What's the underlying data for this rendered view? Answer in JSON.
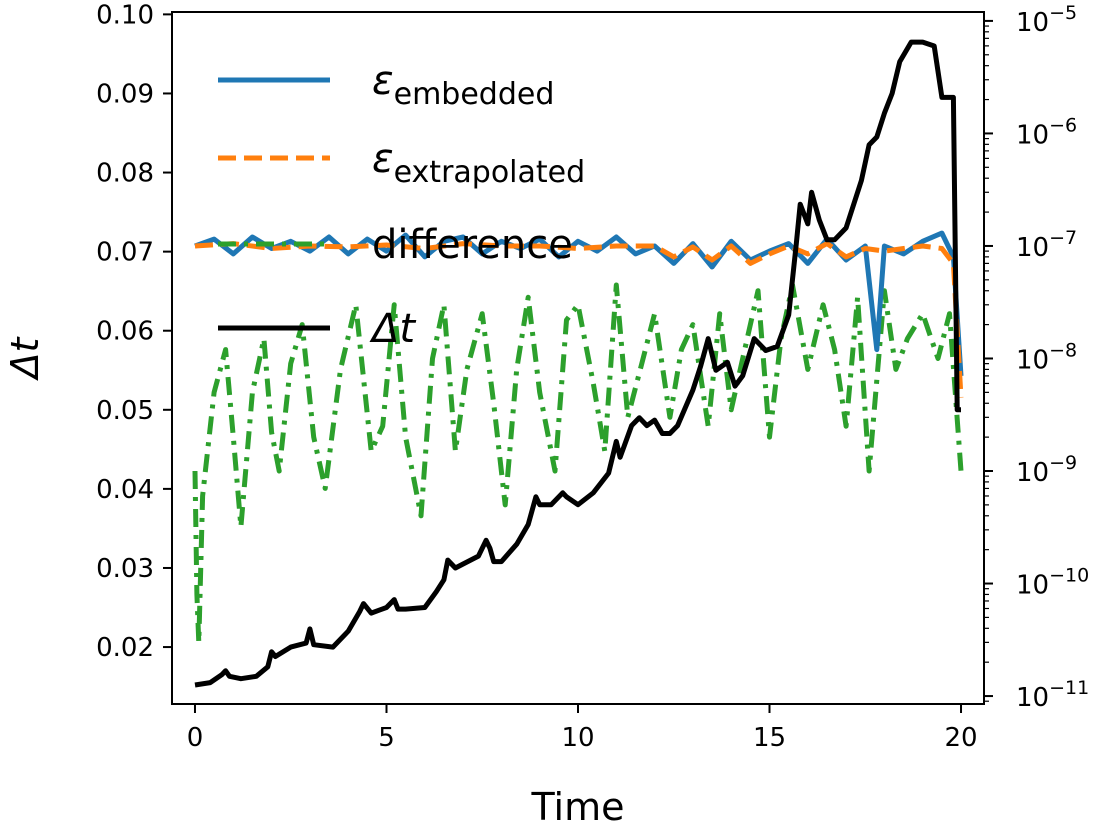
{
  "chart_data": {
    "type": "line",
    "xlabel": "Time",
    "ylabel": "Δt",
    "xlim": [
      -0.6,
      20.6
    ],
    "ylim": [
      0.0128,
      0.1003
    ],
    "y2lim": [
      8.5e-12,
      1.2e-05
    ],
    "y2scale": "log",
    "xticks": [
      0,
      5,
      10,
      15,
      20
    ],
    "xtick_labels": [
      "0",
      "5",
      "10",
      "15",
      "20"
    ],
    "yticks": [
      0.02,
      0.03,
      0.04,
      0.05,
      0.06,
      0.07,
      0.08,
      0.09,
      0.1
    ],
    "ytick_labels": [
      "0.02",
      "0.03",
      "0.04",
      "0.05",
      "0.06",
      "0.07",
      "0.08",
      "0.09",
      "0.10"
    ],
    "y2ticks": [
      1e-11,
      1e-10,
      1e-09,
      1e-08,
      1e-07,
      1e-06,
      1e-05
    ],
    "y2tick_labels": [
      {
        "base": "10",
        "exp": "−11"
      },
      {
        "base": "10",
        "exp": "−10"
      },
      {
        "base": "10",
        "exp": "−9"
      },
      {
        "base": "10",
        "exp": "−8"
      },
      {
        "base": "10",
        "exp": "−7"
      },
      {
        "base": "10",
        "exp": "−6"
      },
      {
        "base": "10",
        "exp": "−5"
      }
    ],
    "legend": {
      "placement": "upper-left",
      "entries": [
        {
          "symbol": "ε",
          "subscript": "embedded",
          "series": "embedded"
        },
        {
          "symbol": "ε",
          "subscript": "extrapolated",
          "series": "extrapolated"
        },
        {
          "symbol": "difference",
          "subscript": "",
          "series": "difference"
        },
        {
          "symbol": "Δt",
          "subscript": "",
          "series": "dt"
        }
      ]
    },
    "series": [
      {
        "key": "dt",
        "axis": "left",
        "color": "#000000",
        "dash": "solid",
        "x": [
          0,
          0.4,
          0.7,
          0.8,
          0.9,
          1.2,
          1.6,
          1.9,
          2.0,
          2.1,
          2.5,
          2.9,
          3.0,
          3.1,
          3.6,
          4.0,
          4.3,
          4.4,
          4.6,
          5.0,
          5.2,
          5.3,
          5.5,
          6.0,
          6.3,
          6.5,
          6.6,
          6.8,
          7.0,
          7.4,
          7.6,
          7.7,
          7.8,
          8.0,
          8.4,
          8.7,
          8.9,
          9.0,
          9.3,
          9.6,
          9.7,
          10.0,
          10.4,
          10.8,
          11.0,
          11.1,
          11.4,
          11.6,
          11.8,
          12.0,
          12.2,
          12.4,
          12.6,
          13.0,
          13.2,
          13.4,
          13.6,
          13.9,
          14.1,
          14.3,
          14.6,
          14.9,
          15.2,
          15.5,
          15.7,
          15.8,
          16.0,
          16.1,
          16.3,
          16.5,
          16.7,
          17.0,
          17.4,
          17.6,
          17.8,
          18.0,
          18.2,
          18.4,
          18.7,
          19.0,
          19.3,
          19.5,
          19.7,
          19.8,
          19.9,
          20.0
        ],
        "values": [
          0.0152,
          0.0155,
          0.0165,
          0.017,
          0.0163,
          0.016,
          0.0163,
          0.0175,
          0.0194,
          0.0188,
          0.02,
          0.0205,
          0.0223,
          0.0203,
          0.02,
          0.022,
          0.0245,
          0.0255,
          0.0243,
          0.025,
          0.026,
          0.0248,
          0.0248,
          0.025,
          0.027,
          0.0285,
          0.031,
          0.03,
          0.0305,
          0.0315,
          0.0335,
          0.0325,
          0.0308,
          0.0308,
          0.033,
          0.0355,
          0.039,
          0.038,
          0.038,
          0.0395,
          0.039,
          0.038,
          0.0395,
          0.042,
          0.046,
          0.044,
          0.048,
          0.049,
          0.048,
          0.0487,
          0.047,
          0.047,
          0.048,
          0.0525,
          0.0555,
          0.059,
          0.055,
          0.056,
          0.053,
          0.0543,
          0.059,
          0.0575,
          0.058,
          0.062,
          0.071,
          0.076,
          0.0735,
          0.0775,
          0.074,
          0.0715,
          0.0715,
          0.073,
          0.079,
          0.0835,
          0.0845,
          0.0875,
          0.09,
          0.094,
          0.0965,
          0.0965,
          0.096,
          0.0895,
          0.0895,
          0.0895,
          0.05,
          0.05
        ]
      },
      {
        "key": "embedded",
        "axis": "right",
        "color": "#1f77b4",
        "dash": "solid",
        "x": [
          0,
          0.5,
          1.0,
          1.5,
          2.0,
          2.5,
          3.0,
          3.5,
          4.0,
          4.5,
          5.0,
          5.5,
          6.0,
          6.5,
          7.0,
          7.5,
          8.0,
          8.5,
          9.0,
          9.5,
          10.0,
          10.5,
          11.0,
          11.5,
          12.0,
          12.5,
          13.0,
          13.5,
          14.0,
          14.5,
          15.0,
          15.5,
          16.0,
          16.5,
          17.0,
          17.5,
          17.8,
          18.0,
          18.5,
          19.0,
          19.5,
          19.8,
          20.0
        ],
        "values": [
          1e-07,
          1.15e-07,
          8.5e-08,
          1.2e-07,
          9.5e-08,
          1.1e-07,
          9e-08,
          1.2e-07,
          8.5e-08,
          1.15e-07,
          9e-08,
          1.25e-07,
          8e-08,
          1.1e-07,
          1.2e-07,
          8.5e-08,
          1.1e-07,
          9.5e-08,
          1.15e-07,
          8e-08,
          1.1e-07,
          9e-08,
          1.2e-07,
          8.5e-08,
          1e-07,
          7e-08,
          1.05e-07,
          6.5e-08,
          1.1e-07,
          7.5e-08,
          9e-08,
          1.05e-07,
          7e-08,
          1.15e-07,
          7.5e-08,
          1e-07,
          1.2e-08,
          1e-07,
          8.5e-08,
          1.1e-07,
          1.3e-07,
          8e-08,
          7e-09
        ]
      },
      {
        "key": "extrapolated",
        "axis": "right",
        "color": "#ff7f0e",
        "dash": "dashed",
        "x": [
          0,
          1.0,
          2.0,
          3.0,
          4.0,
          5.0,
          6.0,
          7.0,
          8.0,
          9.0,
          10.0,
          11.0,
          12.0,
          12.5,
          13.0,
          13.5,
          14.0,
          14.5,
          15.0,
          15.5,
          16.0,
          16.5,
          17.0,
          17.5,
          18.0,
          18.5,
          19.0,
          19.5,
          19.8,
          20.0
        ],
        "values": [
          1e-07,
          1.05e-07,
          9.5e-08,
          1e-07,
          9.8e-08,
          1.02e-07,
          9.5e-08,
          1.05e-07,
          1e-07,
          1e-07,
          9.5e-08,
          1e-07,
          1e-07,
          8e-08,
          9.8e-08,
          7.5e-08,
          1e-07,
          7e-08,
          8.5e-08,
          1e-07,
          8.5e-08,
          1.05e-07,
          8e-08,
          9.5e-08,
          9e-08,
          9.5e-08,
          1e-07,
          9.5e-08,
          7e-08,
          4.5e-09
        ]
      },
      {
        "key": "difference",
        "axis": "right",
        "color": "#2ca02c",
        "dash": "dashdot",
        "x": [
          0,
          0.05,
          0.1,
          0.2,
          0.5,
          0.8,
          1.0,
          1.2,
          1.5,
          1.8,
          2.0,
          2.2,
          2.5,
          2.8,
          3.1,
          3.4,
          3.8,
          4.2,
          4.6,
          4.9,
          5.2,
          5.5,
          5.9,
          6.2,
          6.5,
          6.8,
          7.1,
          7.5,
          7.8,
          8.1,
          8.4,
          8.7,
          9.0,
          9.4,
          9.7,
          10.0,
          10.4,
          10.7,
          11.0,
          11.3,
          11.7,
          12.0,
          12.4,
          12.7,
          13.0,
          13.4,
          13.7,
          14.0,
          14.3,
          14.7,
          15.0,
          15.3,
          15.6,
          16.0,
          16.4,
          16.7,
          17.0,
          17.3,
          17.6,
          18.0,
          18.3,
          18.6,
          19.0,
          19.4,
          19.7,
          20.0
        ],
        "values": [
          1e-09,
          8e-11,
          3e-11,
          6e-10,
          5e-09,
          1.2e-08,
          2e-09,
          3.2e-10,
          5e-09,
          1.5e-08,
          2.2e-09,
          1e-09,
          9e-09,
          2e-08,
          2e-09,
          7e-10,
          8e-09,
          3e-08,
          1.5e-09,
          2.5e-09,
          3e-08,
          2e-09,
          4e-10,
          1e-08,
          3e-08,
          1.5e-09,
          8e-09,
          2.5e-08,
          4e-09,
          5e-10,
          8e-09,
          3.5e-08,
          5e-09,
          1e-09,
          2.2e-08,
          3e-08,
          6e-09,
          1.5e-09,
          4.5e-08,
          3e-09,
          1e-08,
          2.5e-08,
          3e-09,
          1.2e-08,
          2e-08,
          2.5e-09,
          2.5e-08,
          3.5e-09,
          1e-08,
          4e-08,
          2e-09,
          1.5e-08,
          4.5e-08,
          8e-09,
          3e-08,
          1.2e-08,
          2.5e-09,
          3.5e-08,
          1e-09,
          4e-08,
          8e-09,
          1.5e-08,
          2.5e-08,
          1e-08,
          2.5e-08,
          1e-09
        ]
      }
    ]
  }
}
